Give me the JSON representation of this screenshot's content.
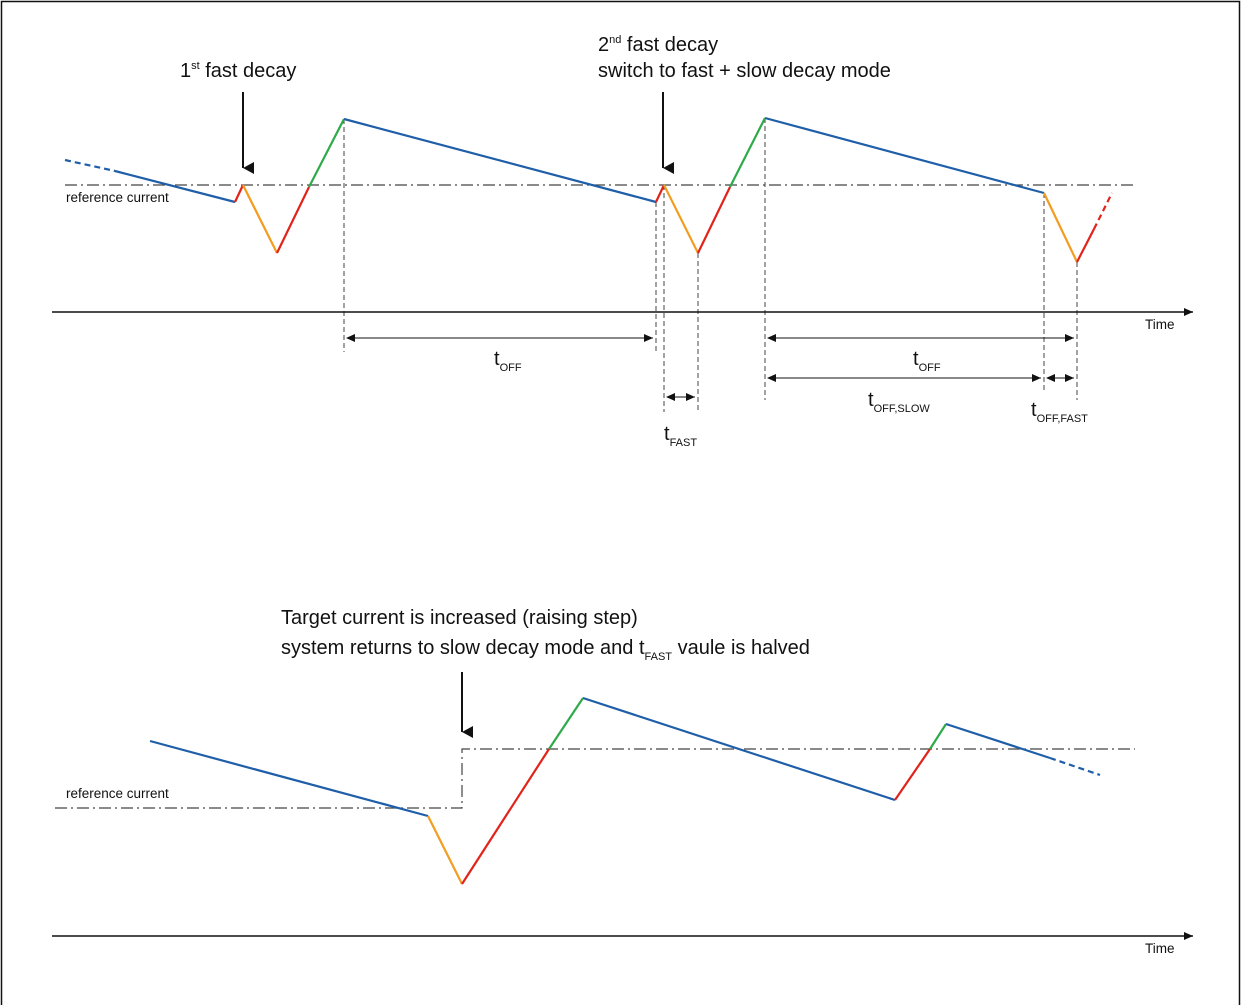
{
  "colors": {
    "slow_decay": "#1f5ea8",
    "fast_decay": "#f39c1f",
    "on_phase_rise": "#e2231a",
    "on_phase_overshoot": "#2eaa4a",
    "guides": "#444444"
  },
  "top": {
    "annotation_first": {
      "ordinal": "1",
      "sup": "st",
      "text": " fast decay"
    },
    "annotation_second": {
      "ordinal": "2",
      "sup": "nd",
      "line1": " fast decay",
      "line2": "switch to fast + slow decay mode"
    },
    "reference_label": "reference current",
    "axis_label": "Time",
    "dims": [
      {
        "base": "t",
        "sub": "OFF"
      },
      {
        "base": "t",
        "sub": "FAST"
      },
      {
        "base": "t",
        "sub": "OFF"
      },
      {
        "base": "t",
        "sub": "OFF,SLOW"
      },
      {
        "base": "t",
        "sub": "OFF,FAST"
      }
    ]
  },
  "bottom": {
    "annotation_line1": "Target current is increased (raising step)",
    "annotation_line2_pre": "system returns to slow decay mode and t",
    "annotation_line2_sub": "FAST",
    "annotation_line2_post": " vaule is halved",
    "reference_label": "reference current",
    "axis_label": "Time"
  }
}
